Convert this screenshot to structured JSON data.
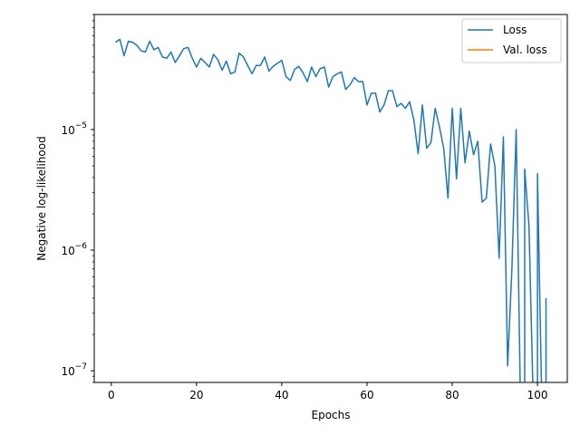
{
  "chart_data": {
    "type": "line",
    "title": "",
    "xlabel": "Epochs",
    "ylabel": "Negative log-likelihood",
    "xlim": [
      -4,
      107
    ],
    "ylim": [
      8e-08,
      9e-05
    ],
    "yscale": "log",
    "x_ticks": [
      0,
      20,
      40,
      60,
      80,
      100
    ],
    "y_ticks": [
      {
        "value": 1e-07,
        "base": "10",
        "exp": "−7"
      },
      {
        "value": 1e-06,
        "base": "10",
        "exp": "−6"
      },
      {
        "value": 1e-05,
        "base": "10",
        "exp": "−5"
      }
    ],
    "grid": false,
    "legend_position": "top-right",
    "series": [
      {
        "name": "Loss",
        "color": "#1f77b4",
        "x": [
          1,
          2,
          3,
          4,
          5,
          6,
          7,
          8,
          9,
          10,
          11,
          12,
          13,
          14,
          15,
          16,
          17,
          18,
          19,
          20,
          21,
          22,
          23,
          24,
          25,
          26,
          27,
          28,
          29,
          30,
          31,
          32,
          33,
          34,
          35,
          36,
          37,
          38,
          39,
          40,
          41,
          42,
          43,
          44,
          45,
          46,
          47,
          48,
          49,
          50,
          51,
          52,
          53,
          54,
          55,
          56,
          57,
          58,
          59,
          60,
          61,
          62,
          63,
          64,
          65,
          66,
          67,
          68,
          69,
          70,
          71,
          72,
          73,
          74,
          75,
          76,
          77,
          78,
          79,
          80,
          81,
          82,
          83,
          84,
          85,
          86,
          87,
          88,
          89,
          90,
          91,
          92,
          93,
          94,
          95,
          96,
          97,
          98,
          99,
          100,
          101,
          102
        ],
        "values": [
          5.3e-05,
          5.6e-05,
          4.1e-05,
          5.4e-05,
          5.3e-05,
          5e-05,
          4.5e-05,
          4.4e-05,
          5.4e-05,
          4.6e-05,
          4.8e-05,
          4e-05,
          3.9e-05,
          4.4e-05,
          3.6e-05,
          4.1e-05,
          4.7e-05,
          4.8e-05,
          3.9e-05,
          3.3e-05,
          3.9e-05,
          3.6e-05,
          3.3e-05,
          4.2e-05,
          3.8e-05,
          3.1e-05,
          3.7e-05,
          2.9e-05,
          3e-05,
          4.3e-05,
          4e-05,
          3.4e-05,
          2.9e-05,
          3.4e-05,
          3.4e-05,
          4e-05,
          3.05e-05,
          3.35e-05,
          3.55e-05,
          3.75e-05,
          2.75e-05,
          2.55e-05,
          3.15e-05,
          3.35e-05,
          2.95e-05,
          2.5e-05,
          3.3e-05,
          2.75e-05,
          3.2e-05,
          3.3e-05,
          2.25e-05,
          2.75e-05,
          2.9e-05,
          3e-05,
          2.15e-05,
          2.35e-05,
          2.7e-05,
          2.5e-05,
          2.5e-05,
          1.6e-05,
          2e-05,
          2e-05,
          1.4e-05,
          1.6e-05,
          2.1e-05,
          2.1e-05,
          1.55e-05,
          1.65e-05,
          1.5e-05,
          1.7e-05,
          1.2e-05,
          6.3e-06,
          1.6e-05,
          7e-06,
          7.8e-06,
          1.5e-05,
          1.05e-05,
          7e-06,
          2.7e-06,
          1.5e-05,
          3.9e-06,
          1.5e-05,
          5.3e-06,
          9.7e-06,
          6.2e-06,
          8e-06,
          2.5e-06,
          2.7e-06,
          7.6e-06,
          5e-06,
          8.6e-07,
          8.7e-06,
          1.1e-07,
          7e-07,
          1e-05,
          null,
          4.7e-06,
          1.6e-06,
          null,
          4.3e-06,
          null,
          4e-07
        ]
      },
      {
        "name": "Val. loss",
        "color": "#ff7f0e",
        "x": [],
        "values": []
      }
    ]
  }
}
